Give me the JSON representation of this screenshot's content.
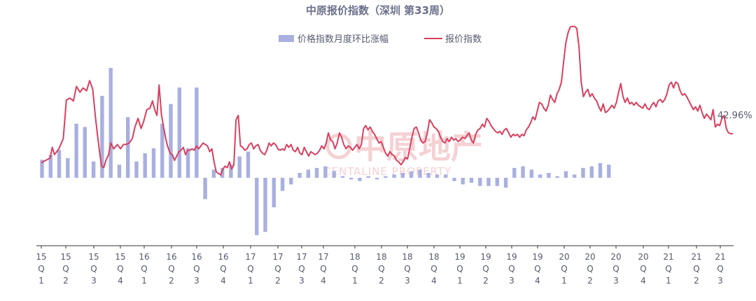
{
  "chart_data": {
    "type": "bar+line",
    "title": "中原报价指数（深圳 第33周）",
    "legend": {
      "bar_label": "价格指数月度环比涨幅",
      "line_label": "报价指数",
      "placement": "top-center"
    },
    "watermark": {
      "brand": "中原地产",
      "sub": "CENTALINE PROPERTY"
    },
    "end_label": "42.96%",
    "colors": {
      "bar": "#a9b0e0",
      "line": "#d8405f",
      "axis": "#333333"
    },
    "x_ticks": [
      [
        "15",
        "Q",
        "1"
      ],
      [
        "15",
        "Q",
        "2"
      ],
      [
        "15",
        "Q",
        "3"
      ],
      [
        "15",
        "Q",
        "4"
      ],
      [
        "16",
        "Q",
        "1"
      ],
      [
        "16",
        "Q",
        "2"
      ],
      [
        "16",
        "Q",
        "3"
      ],
      [
        "16",
        "Q",
        "4"
      ],
      [
        "17",
        "Q",
        "1"
      ],
      [
        "17",
        "Q",
        "2"
      ],
      [
        "17",
        "Q",
        "3"
      ],
      [
        "17",
        "Q",
        "4"
      ],
      [
        "18",
        "Q",
        "1"
      ],
      [
        "18",
        "Q",
        "2"
      ],
      [
        "18",
        "Q",
        "3"
      ],
      [
        "18",
        "Q",
        "4"
      ],
      [
        "19",
        "Q",
        "1"
      ],
      [
        "19",
        "Q",
        "2"
      ],
      [
        "19",
        "Q",
        "3"
      ],
      [
        "19",
        "Q",
        "4"
      ],
      [
        "20",
        "Q",
        "1"
      ],
      [
        "20",
        "Q",
        "2"
      ],
      [
        "20",
        "Q",
        "3"
      ],
      [
        "20",
        "Q",
        "4"
      ],
      [
        "21",
        "Q",
        "1"
      ],
      [
        "21",
        "Q",
        "2"
      ],
      [
        "21",
        "Q",
        "3"
      ]
    ],
    "bar_months": [
      "2015-01",
      "2015-02",
      "2015-03",
      "2015-04",
      "2015-05",
      "2015-06",
      "2015-07",
      "2015-08",
      "2015-09",
      "2015-10",
      "2015-11",
      "2015-12",
      "2016-01",
      "2016-02",
      "2016-03",
      "2016-04",
      "2016-05",
      "2016-06",
      "2016-07",
      "2016-08",
      "2016-09",
      "2016-10",
      "2016-11",
      "2016-12",
      "2017-01",
      "2017-02",
      "2017-03",
      "2017-04",
      "2017-05",
      "2017-06",
      "2017-07",
      "2017-08",
      "2017-09",
      "2017-10",
      "2017-11",
      "2017-12",
      "2018-01",
      "2018-02",
      "2018-03",
      "2018-04",
      "2018-05",
      "2018-06",
      "2018-07",
      "2018-08",
      "2018-09",
      "2018-10",
      "2018-11",
      "2018-12",
      "2019-01",
      "2019-02",
      "2019-03",
      "2019-04",
      "2019-05",
      "2019-06",
      "2019-07",
      "2019-08",
      "2019-09",
      "2019-10",
      "2019-11",
      "2019-12",
      "2020-01",
      "2020-02",
      "2020-03",
      "2020-04",
      "2020-05",
      "2020-06",
      "2020-07"
    ],
    "bar_values": [
      1.1,
      1.4,
      1.7,
      1.2,
      3.3,
      3.1,
      1.0,
      5.0,
      6.7,
      0.8,
      3.7,
      1.0,
      1.5,
      1.8,
      3.3,
      4.5,
      5.5,
      1.8,
      5.5,
      -1.3,
      0.5,
      0.6,
      0.8,
      1.3,
      1.6,
      -3.5,
      -3.3,
      -1.8,
      -0.8,
      -0.4,
      0.3,
      0.5,
      0.6,
      0.7,
      0.4,
      0.1,
      -0.1,
      -0.2,
      0.1,
      -0.1,
      0.1,
      0.2,
      0.3,
      0.4,
      0.5,
      0.3,
      0.2,
      0.2,
      -0.2,
      -0.4,
      -0.3,
      -0.5,
      -0.5,
      -0.5,
      -0.6,
      0.6,
      0.7,
      0.5,
      0.2,
      0.3,
      0.1,
      0.4,
      0.2,
      0.6,
      0.7,
      0.9,
      0.8
    ],
    "bar_ylim": [
      -4.5,
      7.0
    ],
    "line_points": [
      [
        0.0,
        5.2
      ],
      [
        1.0,
        6.0
      ],
      [
        2.0,
        6.8
      ],
      [
        2.5,
        10.5
      ],
      [
        3.0,
        8.0
      ],
      [
        4.0,
        10.0
      ],
      [
        5.0,
        13.5
      ],
      [
        5.7,
        26.8
      ],
      [
        6.5,
        27.5
      ],
      [
        7.3,
        26.5
      ],
      [
        8.0,
        31.5
      ],
      [
        8.8,
        29.5
      ],
      [
        9.5,
        31.0
      ],
      [
        10.3,
        30.0
      ],
      [
        11.0,
        33.5
      ],
      [
        11.7,
        30.5
      ],
      [
        12.3,
        21.0
      ],
      [
        12.8,
        14.5
      ],
      [
        13.3,
        8.5
      ],
      [
        13.7,
        4.0
      ],
      [
        14.2,
        3.5
      ],
      [
        14.7,
        6.0
      ],
      [
        15.3,
        8.0
      ],
      [
        15.8,
        12.0
      ],
      [
        16.5,
        10.0
      ],
      [
        17.3,
        11.5
      ],
      [
        18.0,
        10.0
      ],
      [
        18.7,
        11.5
      ],
      [
        19.3,
        11.5
      ],
      [
        20.0,
        12.0
      ],
      [
        20.7,
        13.5
      ],
      [
        21.3,
        17.5
      ],
      [
        22.0,
        20.5
      ],
      [
        22.7,
        17.0
      ],
      [
        23.3,
        19.5
      ],
      [
        24.0,
        23.5
      ],
      [
        24.7,
        24.0
      ],
      [
        25.3,
        26.5
      ],
      [
        25.8,
        23.5
      ],
      [
        26.3,
        21.5
      ],
      [
        26.8,
        32.0
      ],
      [
        27.3,
        22.0
      ],
      [
        27.8,
        17.5
      ],
      [
        28.3,
        13.5
      ],
      [
        28.7,
        11.0
      ],
      [
        29.3,
        8.5
      ],
      [
        29.8,
        8.0
      ],
      [
        30.3,
        6.0
      ],
      [
        30.8,
        7.5
      ],
      [
        31.3,
        9.0
      ],
      [
        31.8,
        9.5
      ],
      [
        32.3,
        10.5
      ],
      [
        32.8,
        8.0
      ],
      [
        33.3,
        9.5
      ],
      [
        33.8,
        9.5
      ],
      [
        34.3,
        10.0
      ],
      [
        34.8,
        9.5
      ],
      [
        35.3,
        11.0
      ],
      [
        35.8,
        10.0
      ],
      [
        36.3,
        11.0
      ],
      [
        36.8,
        12.0
      ],
      [
        37.3,
        11.5
      ],
      [
        37.8,
        11.0
      ],
      [
        38.3,
        9.0
      ],
      [
        38.8,
        10.0
      ],
      [
        39.3,
        5.5
      ],
      [
        39.8,
        2.0
      ],
      [
        40.3,
        1.5
      ],
      [
        40.8,
        1.0
      ],
      [
        41.3,
        3.0
      ],
      [
        41.8,
        4.0
      ],
      [
        42.3,
        3.5
      ],
      [
        42.8,
        5.5
      ],
      [
        43.3,
        3.0
      ],
      [
        43.8,
        4.5
      ],
      [
        44.3,
        20.0
      ],
      [
        44.8,
        21.5
      ],
      [
        45.3,
        11.0
      ],
      [
        45.8,
        10.5
      ],
      [
        46.3,
        9.5
      ],
      [
        46.8,
        10.0
      ],
      [
        47.3,
        11.5
      ],
      [
        47.8,
        12.0
      ],
      [
        48.3,
        10.0
      ],
      [
        48.8,
        11.0
      ],
      [
        49.3,
        11.5
      ],
      [
        49.8,
        9.5
      ],
      [
        50.3,
        8.5
      ],
      [
        50.8,
        8.0
      ],
      [
        51.3,
        9.5
      ],
      [
        51.8,
        12.0
      ],
      [
        52.3,
        11.0
      ],
      [
        52.8,
        12.0
      ],
      [
        53.3,
        11.5
      ],
      [
        53.8,
        10.0
      ],
      [
        54.3,
        9.5
      ],
      [
        54.8,
        10.0
      ],
      [
        55.3,
        9.5
      ],
      [
        55.8,
        11.5
      ],
      [
        56.3,
        10.5
      ],
      [
        56.8,
        11.5
      ],
      [
        57.3,
        9.5
      ],
      [
        57.8,
        9.0
      ],
      [
        58.3,
        10.5
      ],
      [
        58.8,
        8.5
      ],
      [
        59.3,
        8.0
      ],
      [
        59.8,
        10.5
      ],
      [
        60.3,
        9.0
      ],
      [
        60.8,
        7.5
      ],
      [
        61.3,
        9.0
      ],
      [
        61.8,
        8.5
      ],
      [
        62.3,
        8.0
      ],
      [
        62.8,
        8.5
      ],
      [
        63.3,
        9.5
      ],
      [
        63.8,
        11.0
      ],
      [
        64.3,
        10.0
      ],
      [
        64.8,
        12.0
      ],
      [
        65.3,
        15.5
      ],
      [
        65.8,
        13.0
      ],
      [
        66.3,
        12.5
      ],
      [
        66.8,
        10.0
      ],
      [
        67.3,
        12.0
      ],
      [
        67.8,
        15.5
      ],
      [
        68.3,
        14.0
      ],
      [
        68.8,
        11.5
      ],
      [
        69.3,
        10.0
      ],
      [
        69.8,
        11.0
      ],
      [
        70.3,
        10.5
      ],
      [
        70.8,
        9.5
      ],
      [
        71.3,
        10.5
      ],
      [
        71.8,
        11.5
      ],
      [
        72.3,
        10.0
      ],
      [
        72.8,
        11.5
      ],
      [
        73.3,
        17.0
      ],
      [
        73.8,
        18.0
      ],
      [
        74.3,
        16.5
      ],
      [
        74.8,
        17.5
      ],
      [
        75.3,
        16.0
      ],
      [
        75.8,
        15.0
      ],
      [
        76.3,
        13.5
      ],
      [
        76.8,
        12.0
      ],
      [
        77.3,
        12.5
      ],
      [
        77.8,
        10.5
      ],
      [
        78.3,
        8.5
      ],
      [
        78.8,
        7.5
      ],
      [
        79.3,
        9.0
      ],
      [
        79.8,
        8.0
      ],
      [
        80.3,
        7.5
      ],
      [
        80.8,
        6.0
      ],
      [
        81.3,
        5.5
      ],
      [
        81.8,
        4.5
      ],
      [
        82.3,
        5.5
      ],
      [
        82.8,
        7.0
      ],
      [
        83.3,
        6.5
      ],
      [
        83.8,
        10.0
      ],
      [
        84.3,
        14.0
      ],
      [
        84.8,
        17.0
      ],
      [
        85.3,
        17.5
      ],
      [
        85.8,
        15.5
      ],
      [
        86.3,
        13.0
      ],
      [
        86.8,
        12.0
      ],
      [
        87.3,
        12.5
      ],
      [
        87.8,
        15.5
      ],
      [
        88.3,
        20.0
      ],
      [
        88.8,
        19.0
      ],
      [
        89.3,
        17.5
      ],
      [
        89.8,
        17.0
      ],
      [
        90.3,
        16.0
      ],
      [
        90.8,
        14.0
      ],
      [
        91.3,
        12.5
      ],
      [
        91.8,
        12.0
      ],
      [
        92.3,
        13.5
      ],
      [
        92.8,
        12.5
      ],
      [
        93.3,
        14.0
      ],
      [
        93.8,
        13.0
      ],
      [
        94.3,
        13.5
      ],
      [
        94.8,
        12.5
      ],
      [
        95.3,
        13.0
      ],
      [
        95.8,
        14.0
      ],
      [
        96.3,
        13.5
      ],
      [
        96.8,
        14.5
      ],
      [
        97.3,
        15.5
      ],
      [
        97.8,
        13.0
      ],
      [
        98.3,
        12.0
      ],
      [
        98.8,
        15.0
      ],
      [
        99.3,
        16.5
      ],
      [
        99.8,
        17.0
      ],
      [
        100.3,
        18.5
      ],
      [
        100.8,
        17.5
      ],
      [
        101.3,
        20.5
      ],
      [
        101.8,
        19.5
      ],
      [
        102.3,
        18.0
      ],
      [
        102.8,
        17.0
      ],
      [
        103.3,
        16.0
      ],
      [
        103.8,
        15.5
      ],
      [
        104.3,
        16.0
      ],
      [
        104.8,
        15.0
      ],
      [
        105.3,
        16.5
      ],
      [
        105.8,
        17.0
      ],
      [
        106.3,
        15.5
      ],
      [
        106.8,
        14.0
      ],
      [
        107.3,
        15.0
      ],
      [
        107.8,
        14.5
      ],
      [
        108.3,
        15.0
      ],
      [
        108.8,
        14.0
      ],
      [
        109.3,
        15.0
      ],
      [
        109.8,
        14.5
      ],
      [
        110.3,
        16.5
      ],
      [
        110.8,
        17.5
      ],
      [
        111.3,
        19.0
      ],
      [
        111.8,
        21.0
      ],
      [
        112.3,
        20.0
      ],
      [
        112.8,
        23.0
      ],
      [
        113.3,
        26.0
      ],
      [
        113.8,
        25.5
      ],
      [
        114.3,
        24.0
      ],
      [
        114.8,
        23.0
      ],
      [
        115.3,
        25.0
      ],
      [
        115.8,
        28.5
      ],
      [
        116.3,
        27.0
      ],
      [
        116.8,
        26.0
      ],
      [
        117.3,
        29.0
      ],
      [
        117.8,
        30.5
      ],
      [
        118.3,
        33.0
      ],
      [
        118.8,
        40.0
      ],
      [
        119.3,
        46.5
      ],
      [
        119.8,
        50.0
      ],
      [
        120.3,
        52.0
      ],
      [
        120.8,
        52.2
      ],
      [
        121.3,
        52.2
      ],
      [
        121.8,
        51.5
      ],
      [
        122.3,
        45.0
      ],
      [
        122.8,
        33.0
      ],
      [
        123.3,
        28.0
      ],
      [
        123.8,
        29.5
      ],
      [
        124.3,
        30.5
      ],
      [
        124.8,
        28.0
      ],
      [
        125.3,
        29.0
      ],
      [
        125.8,
        27.5
      ],
      [
        126.3,
        26.5
      ],
      [
        126.8,
        24.5
      ],
      [
        127.3,
        23.0
      ],
      [
        127.8,
        25.5
      ],
      [
        128.3,
        22.5
      ],
      [
        128.8,
        23.0
      ],
      [
        129.3,
        24.0
      ],
      [
        129.8,
        25.0
      ],
      [
        130.3,
        24.0
      ],
      [
        130.8,
        26.0
      ],
      [
        131.3,
        29.5
      ],
      [
        131.8,
        32.5
      ],
      [
        132.3,
        28.0
      ],
      [
        132.8,
        26.0
      ],
      [
        133.3,
        27.5
      ],
      [
        133.8,
        25.5
      ],
      [
        134.3,
        26.0
      ],
      [
        134.8,
        25.0
      ],
      [
        135.3,
        26.0
      ],
      [
        135.8,
        25.0
      ],
      [
        136.3,
        24.5
      ],
      [
        136.8,
        24.0
      ],
      [
        137.3,
        25.5
      ],
      [
        137.8,
        24.0
      ],
      [
        138.3,
        23.5
      ],
      [
        138.8,
        25.0
      ],
      [
        139.3,
        26.0
      ],
      [
        139.8,
        24.5
      ],
      [
        140.3,
        26.5
      ],
      [
        140.8,
        27.0
      ],
      [
        141.3,
        26.0
      ],
      [
        141.8,
        27.0
      ],
      [
        142.3,
        29.0
      ],
      [
        142.8,
        32.0
      ],
      [
        143.3,
        33.0
      ],
      [
        143.8,
        31.0
      ],
      [
        144.3,
        33.0
      ],
      [
        144.8,
        32.5
      ],
      [
        145.3,
        30.0
      ],
      [
        145.8,
        28.5
      ],
      [
        146.3,
        29.0
      ],
      [
        146.8,
        28.0
      ],
      [
        147.3,
        26.5
      ],
      [
        147.8,
        25.0
      ],
      [
        148.3,
        23.5
      ],
      [
        148.8,
        24.5
      ],
      [
        149.3,
        23.0
      ],
      [
        149.8,
        25.0
      ],
      [
        150.3,
        22.5
      ],
      [
        150.8,
        20.5
      ],
      [
        151.3,
        22.0
      ],
      [
        151.8,
        21.0
      ],
      [
        152.3,
        20.0
      ],
      [
        152.8,
        23.5
      ],
      [
        153.3,
        17.5
      ],
      [
        153.8,
        18.5
      ],
      [
        154.3,
        18.0
      ],
      [
        154.8,
        20.5
      ],
      [
        155.3,
        21.5
      ],
      [
        155.8,
        17.0
      ],
      [
        156.3,
        15.5
      ],
      [
        156.8,
        15.2
      ],
      [
        157.3,
        15.2
      ]
    ],
    "line_xmax": 157.3,
    "line_ylim": [
      -7,
      56
    ]
  }
}
